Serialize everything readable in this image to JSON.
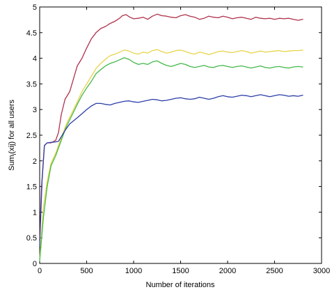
{
  "chart_data": {
    "type": "line",
    "title": "",
    "xlabel": "Number of iterations",
    "ylabel": "Sum",
    "ylabel_sub": "i",
    "ylabel_rest": "(xij) for all users",
    "xlim": [
      0,
      3000
    ],
    "ylim": [
      0,
      5
    ],
    "xticks": [
      0,
      500,
      1000,
      1500,
      2000,
      2500,
      3000
    ],
    "yticks": [
      0,
      0.5,
      1,
      1.5,
      2,
      2.5,
      3,
      3.5,
      4,
      4.5,
      5
    ],
    "xtick_labels": [
      "0",
      "500",
      "1000",
      "1500",
      "2000",
      "2500",
      "3000"
    ],
    "ytick_labels": [
      "0",
      "0.5",
      "1",
      "1.5",
      "2",
      "2.5",
      "3",
      "3.5",
      "4",
      "4.5",
      "5"
    ],
    "grid": false,
    "series": [
      {
        "color": "#b0304a",
        "points": [
          [
            0,
            0.45
          ],
          [
            20,
            1.5
          ],
          [
            50,
            2.3
          ],
          [
            80,
            2.35
          ],
          [
            120,
            2.35
          ],
          [
            170,
            2.4
          ],
          [
            200,
            2.55
          ],
          [
            230,
            2.9
          ],
          [
            270,
            3.2
          ],
          [
            320,
            3.35
          ],
          [
            360,
            3.6
          ],
          [
            400,
            3.85
          ],
          [
            450,
            4.0
          ],
          [
            500,
            4.2
          ],
          [
            550,
            4.38
          ],
          [
            600,
            4.5
          ],
          [
            650,
            4.58
          ],
          [
            700,
            4.62
          ],
          [
            750,
            4.68
          ],
          [
            800,
            4.72
          ],
          [
            850,
            4.78
          ],
          [
            880,
            4.83
          ],
          [
            920,
            4.85
          ],
          [
            960,
            4.8
          ],
          [
            1000,
            4.77
          ],
          [
            1050,
            4.78
          ],
          [
            1100,
            4.8
          ],
          [
            1150,
            4.76
          ],
          [
            1200,
            4.82
          ],
          [
            1250,
            4.86
          ],
          [
            1300,
            4.83
          ],
          [
            1350,
            4.82
          ],
          [
            1400,
            4.8
          ],
          [
            1450,
            4.79
          ],
          [
            1500,
            4.83
          ],
          [
            1550,
            4.85
          ],
          [
            1600,
            4.82
          ],
          [
            1650,
            4.8
          ],
          [
            1700,
            4.76
          ],
          [
            1750,
            4.78
          ],
          [
            1800,
            4.82
          ],
          [
            1850,
            4.8
          ],
          [
            1900,
            4.79
          ],
          [
            1950,
            4.82
          ],
          [
            2000,
            4.8
          ],
          [
            2050,
            4.77
          ],
          [
            2100,
            4.79
          ],
          [
            2150,
            4.8
          ],
          [
            2200,
            4.78
          ],
          [
            2250,
            4.76
          ],
          [
            2300,
            4.8
          ],
          [
            2350,
            4.78
          ],
          [
            2400,
            4.77
          ],
          [
            2450,
            4.78
          ],
          [
            2500,
            4.76
          ],
          [
            2550,
            4.78
          ],
          [
            2600,
            4.77
          ],
          [
            2650,
            4.78
          ],
          [
            2700,
            4.76
          ],
          [
            2750,
            4.74
          ],
          [
            2800,
            4.76
          ]
        ]
      },
      {
        "color": "#e8d44a",
        "points": [
          [
            0,
            0.1
          ],
          [
            40,
            1.1
          ],
          [
            80,
            1.6
          ],
          [
            120,
            1.95
          ],
          [
            170,
            2.15
          ],
          [
            200,
            2.3
          ],
          [
            240,
            2.5
          ],
          [
            280,
            2.7
          ],
          [
            320,
            2.85
          ],
          [
            360,
            3.0
          ],
          [
            400,
            3.15
          ],
          [
            450,
            3.35
          ],
          [
            500,
            3.5
          ],
          [
            550,
            3.65
          ],
          [
            600,
            3.8
          ],
          [
            650,
            3.9
          ],
          [
            700,
            3.98
          ],
          [
            750,
            4.05
          ],
          [
            800,
            4.08
          ],
          [
            850,
            4.12
          ],
          [
            900,
            4.16
          ],
          [
            950,
            4.14
          ],
          [
            1000,
            4.1
          ],
          [
            1050,
            4.08
          ],
          [
            1100,
            4.12
          ],
          [
            1150,
            4.1
          ],
          [
            1200,
            4.15
          ],
          [
            1250,
            4.17
          ],
          [
            1300,
            4.13
          ],
          [
            1350,
            4.1
          ],
          [
            1400,
            4.12
          ],
          [
            1450,
            4.15
          ],
          [
            1500,
            4.16
          ],
          [
            1550,
            4.13
          ],
          [
            1600,
            4.1
          ],
          [
            1650,
            4.08
          ],
          [
            1700,
            4.12
          ],
          [
            1750,
            4.1
          ],
          [
            1800,
            4.07
          ],
          [
            1850,
            4.1
          ],
          [
            1900,
            4.13
          ],
          [
            1950,
            4.14
          ],
          [
            2000,
            4.12
          ],
          [
            2050,
            4.11
          ],
          [
            2100,
            4.13
          ],
          [
            2150,
            4.15
          ],
          [
            2200,
            4.13
          ],
          [
            2250,
            4.1
          ],
          [
            2300,
            4.12
          ],
          [
            2350,
            4.14
          ],
          [
            2400,
            4.12
          ],
          [
            2450,
            4.13
          ],
          [
            2500,
            4.14
          ],
          [
            2550,
            4.15
          ],
          [
            2600,
            4.13
          ],
          [
            2650,
            4.14
          ],
          [
            2700,
            4.15
          ],
          [
            2750,
            4.15
          ],
          [
            2800,
            4.16
          ]
        ]
      },
      {
        "color": "#44b84a",
        "points": [
          [
            0,
            0.05
          ],
          [
            40,
            0.9
          ],
          [
            80,
            1.5
          ],
          [
            120,
            1.9
          ],
          [
            170,
            2.1
          ],
          [
            200,
            2.25
          ],
          [
            240,
            2.45
          ],
          [
            280,
            2.65
          ],
          [
            320,
            2.8
          ],
          [
            360,
            2.95
          ],
          [
            400,
            3.1
          ],
          [
            450,
            3.28
          ],
          [
            500,
            3.42
          ],
          [
            550,
            3.55
          ],
          [
            600,
            3.7
          ],
          [
            650,
            3.78
          ],
          [
            700,
            3.85
          ],
          [
            750,
            3.9
          ],
          [
            800,
            3.93
          ],
          [
            850,
            3.97
          ],
          [
            900,
            4.01
          ],
          [
            950,
            3.98
          ],
          [
            1000,
            3.92
          ],
          [
            1050,
            3.88
          ],
          [
            1100,
            3.9
          ],
          [
            1150,
            3.88
          ],
          [
            1200,
            3.93
          ],
          [
            1250,
            3.95
          ],
          [
            1300,
            3.9
          ],
          [
            1350,
            3.86
          ],
          [
            1400,
            3.84
          ],
          [
            1450,
            3.87
          ],
          [
            1500,
            3.9
          ],
          [
            1550,
            3.88
          ],
          [
            1600,
            3.84
          ],
          [
            1650,
            3.82
          ],
          [
            1700,
            3.84
          ],
          [
            1750,
            3.86
          ],
          [
            1800,
            3.83
          ],
          [
            1850,
            3.82
          ],
          [
            1900,
            3.85
          ],
          [
            1950,
            3.86
          ],
          [
            2000,
            3.84
          ],
          [
            2050,
            3.82
          ],
          [
            2100,
            3.84
          ],
          [
            2150,
            3.85
          ],
          [
            2200,
            3.83
          ],
          [
            2250,
            3.81
          ],
          [
            2300,
            3.83
          ],
          [
            2350,
            3.85
          ],
          [
            2400,
            3.82
          ],
          [
            2450,
            3.81
          ],
          [
            2500,
            3.83
          ],
          [
            2550,
            3.84
          ],
          [
            2600,
            3.82
          ],
          [
            2650,
            3.81
          ],
          [
            2700,
            3.83
          ],
          [
            2750,
            3.84
          ],
          [
            2800,
            3.83
          ]
        ]
      },
      {
        "color": "#2c3ea8",
        "points": [
          [
            0,
            0.35
          ],
          [
            25,
            1.6
          ],
          [
            50,
            2.3
          ],
          [
            80,
            2.35
          ],
          [
            120,
            2.36
          ],
          [
            170,
            2.37
          ],
          [
            200,
            2.38
          ],
          [
            240,
            2.5
          ],
          [
            280,
            2.62
          ],
          [
            320,
            2.72
          ],
          [
            360,
            2.78
          ],
          [
            400,
            2.84
          ],
          [
            450,
            2.92
          ],
          [
            500,
            3.0
          ],
          [
            550,
            3.07
          ],
          [
            600,
            3.12
          ],
          [
            650,
            3.12
          ],
          [
            700,
            3.1
          ],
          [
            750,
            3.09
          ],
          [
            800,
            3.12
          ],
          [
            850,
            3.14
          ],
          [
            900,
            3.16
          ],
          [
            950,
            3.17
          ],
          [
            1000,
            3.15
          ],
          [
            1050,
            3.14
          ],
          [
            1100,
            3.16
          ],
          [
            1150,
            3.18
          ],
          [
            1200,
            3.2
          ],
          [
            1250,
            3.19
          ],
          [
            1300,
            3.17
          ],
          [
            1350,
            3.18
          ],
          [
            1400,
            3.2
          ],
          [
            1450,
            3.22
          ],
          [
            1500,
            3.23
          ],
          [
            1550,
            3.21
          ],
          [
            1600,
            3.2
          ],
          [
            1650,
            3.21
          ],
          [
            1700,
            3.24
          ],
          [
            1750,
            3.22
          ],
          [
            1800,
            3.2
          ],
          [
            1850,
            3.22
          ],
          [
            1900,
            3.25
          ],
          [
            1950,
            3.27
          ],
          [
            2000,
            3.25
          ],
          [
            2050,
            3.24
          ],
          [
            2100,
            3.26
          ],
          [
            2150,
            3.28
          ],
          [
            2200,
            3.27
          ],
          [
            2250,
            3.25
          ],
          [
            2300,
            3.27
          ],
          [
            2350,
            3.29
          ],
          [
            2400,
            3.27
          ],
          [
            2450,
            3.25
          ],
          [
            2500,
            3.27
          ],
          [
            2550,
            3.29
          ],
          [
            2600,
            3.28
          ],
          [
            2650,
            3.26
          ],
          [
            2700,
            3.27
          ],
          [
            2750,
            3.26
          ],
          [
            2800,
            3.28
          ]
        ]
      }
    ]
  }
}
